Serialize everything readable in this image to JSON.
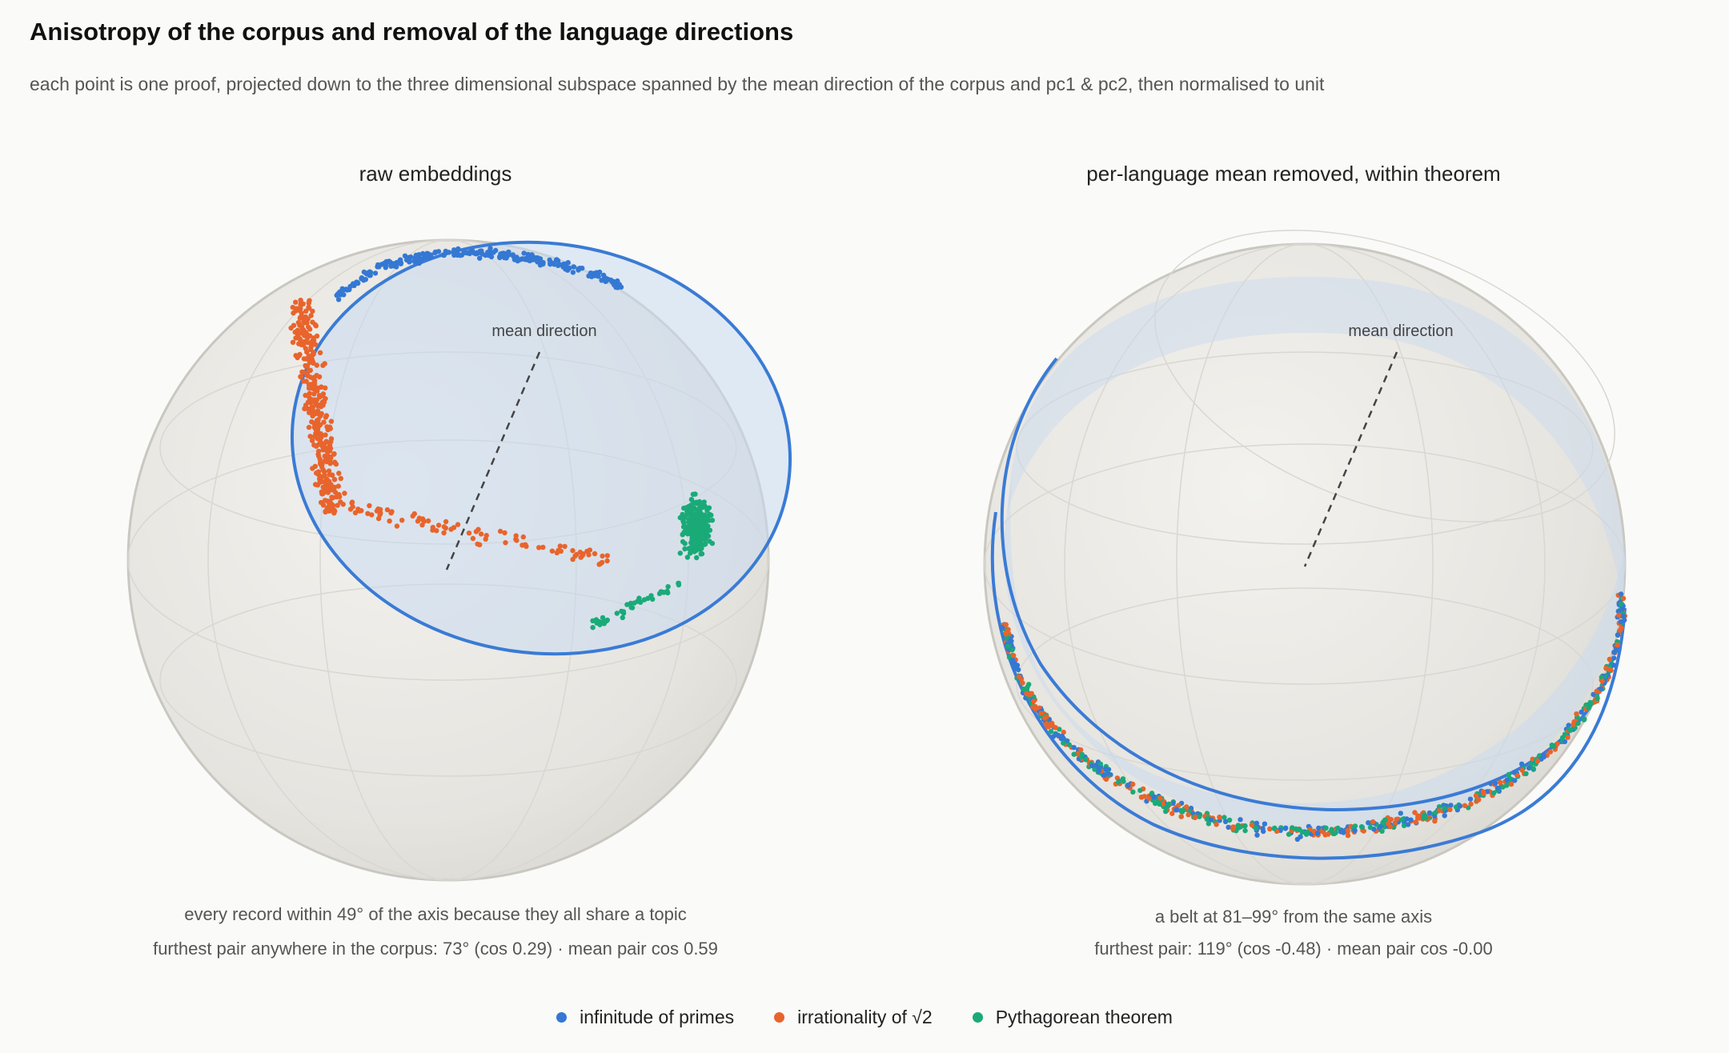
{
  "title": "Anisotropy of the corpus and removal of the language directions",
  "subtitle": "each point is one proof, projected down to the three dimensional subspace spanned by the mean direction of the corpus and pc1 & pc2, then normalised to unit",
  "colors": {
    "infinitude": "#3478d4",
    "irrationality": "#e8642c",
    "pythagorean": "#1aaa78",
    "cap_ring": "#3a7bd5",
    "sphere": "#e9e7e2"
  },
  "chart_data": [
    {
      "type": "scatter",
      "projection": "3d-sphere",
      "title": "raw embeddings",
      "axis_label": "mean direction",
      "caption_line1": "every record within 49° of the axis because they all share a topic",
      "caption_line2": "furthest pair anywhere in the corpus: 73° (cos 0.29) · mean pair cos 0.59",
      "cap_max_angle_deg": 49,
      "furthest_pair_deg": 73,
      "furthest_pair_cos": 0.29,
      "mean_pair_cos": 0.59,
      "series": [
        {
          "name": "infinitude of primes",
          "region": "upper rim of cap"
        },
        {
          "name": "irrationality of √2",
          "region": "left side of cap, trailing toward axis"
        },
        {
          "name": "Pythagorean theorem",
          "region": "right rim of cap"
        }
      ]
    },
    {
      "type": "scatter",
      "projection": "3d-sphere",
      "title": "per-language mean removed, within theorem",
      "axis_label": "mean direction",
      "caption_line1": "a belt at 81–99° from the same axis",
      "caption_line2": "furthest pair: 119° (cos -0.48) · mean pair cos -0.00",
      "belt_range_deg": [
        81,
        99
      ],
      "furthest_pair_deg": 119,
      "furthest_pair_cos": -0.48,
      "mean_pair_cos": -0.0,
      "series": [
        {
          "name": "infinitude of primes",
          "region": "equatorial belt"
        },
        {
          "name": "irrationality of √2",
          "region": "equatorial belt"
        },
        {
          "name": "Pythagorean theorem",
          "region": "equatorial belt"
        }
      ]
    }
  ],
  "legend": [
    {
      "label": "infinitude of primes",
      "color": "#3478d4"
    },
    {
      "label": "irrationality of √2",
      "color": "#e8642c"
    },
    {
      "label": "Pythagorean theorem",
      "color": "#1aaa78"
    }
  ]
}
